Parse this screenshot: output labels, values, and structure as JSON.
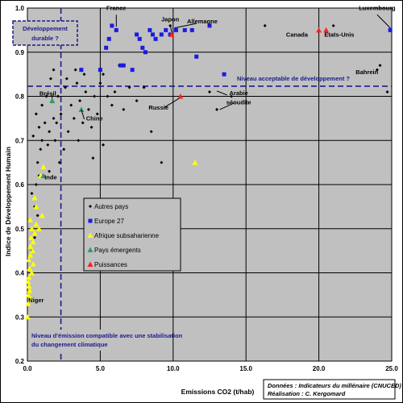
{
  "chart_data": {
    "type": "scatter",
    "xlabel": "Emissions CO2 (t/hab)",
    "ylabel": "Indice de Développement Humain",
    "xlim": [
      0,
      25
    ],
    "ylim": [
      0.2,
      1.0
    ],
    "x_ticks": [
      "0.0",
      "5.0",
      "10.0",
      "15.0",
      "20.0",
      "25.0"
    ],
    "y_ticks": [
      "0.2",
      "0.3",
      "0.4",
      "0.5",
      "0.6",
      "0.7",
      "0.8",
      "0.9",
      "1.0"
    ],
    "grid": true,
    "legend_position": "center-left",
    "series": [
      {
        "name": "Autres pays",
        "color": "#000000",
        "marker": "diamond",
        "points": [
          [
            0.2,
            0.52
          ],
          [
            0.3,
            0.58
          ],
          [
            0.5,
            0.55
          ],
          [
            0.6,
            0.6
          ],
          [
            0.7,
            0.65
          ],
          [
            0.8,
            0.62
          ],
          [
            0.9,
            0.68
          ],
          [
            1.0,
            0.7
          ],
          [
            0.4,
            0.71
          ],
          [
            0.6,
            0.76
          ],
          [
            0.8,
            0.73
          ],
          [
            1.0,
            0.78
          ],
          [
            1.2,
            0.74
          ],
          [
            1.3,
            0.8
          ],
          [
            1.4,
            0.69
          ],
          [
            1.5,
            0.72
          ],
          [
            1.6,
            0.84
          ],
          [
            1.7,
            0.79
          ],
          [
            1.8,
            0.75
          ],
          [
            1.9,
            0.7
          ],
          [
            2.0,
            0.74
          ],
          [
            2.1,
            0.8
          ],
          [
            2.2,
            0.65
          ],
          [
            2.3,
            0.76
          ],
          [
            2.5,
            0.68
          ],
          [
            2.6,
            0.82
          ],
          [
            2.8,
            0.72
          ],
          [
            3.0,
            0.78
          ],
          [
            3.2,
            0.75
          ],
          [
            3.4,
            0.83
          ],
          [
            3.5,
            0.7
          ],
          [
            3.6,
            0.79
          ],
          [
            3.8,
            0.74
          ],
          [
            4.0,
            0.81
          ],
          [
            4.2,
            0.77
          ],
          [
            4.4,
            0.73
          ],
          [
            4.6,
            0.8
          ],
          [
            4.8,
            0.76
          ],
          [
            5.0,
            0.83
          ],
          [
            5.2,
            0.85
          ],
          [
            5.5,
            0.8
          ],
          [
            5.8,
            0.78
          ],
          [
            6.0,
            0.81
          ],
          [
            6.3,
            0.87
          ],
          [
            6.6,
            0.77
          ],
          [
            7.0,
            0.82
          ],
          [
            7.5,
            0.79
          ],
          [
            8.0,
            0.82
          ],
          [
            8.5,
            0.72
          ],
          [
            9.2,
            0.65
          ],
          [
            9.8,
            0.96
          ],
          [
            12.5,
            0.81
          ],
          [
            13.0,
            0.77
          ],
          [
            14.0,
            0.8
          ],
          [
            16.3,
            0.96
          ],
          [
            21.0,
            0.96
          ],
          [
            24.0,
            0.86
          ],
          [
            24.2,
            0.87
          ],
          [
            24.7,
            0.81
          ],
          [
            0.5,
            0.48
          ],
          [
            0.7,
            0.53
          ],
          [
            1.1,
            0.62
          ],
          [
            1.5,
            0.63
          ],
          [
            2.7,
            0.84
          ],
          [
            3.3,
            0.86
          ],
          [
            5.2,
            0.69
          ],
          [
            4.5,
            0.66
          ],
          [
            0.3,
            0.45
          ],
          [
            1.8,
            0.86
          ],
          [
            3.9,
            0.85
          ]
        ]
      },
      {
        "name": "Europe 27",
        "color": "#1a1ae6",
        "marker": "square",
        "points": [
          [
            3.7,
            0.86
          ],
          [
            5.4,
            0.91
          ],
          [
            5.6,
            0.93
          ],
          [
            5.8,
            0.96
          ],
          [
            6.1,
            0.95
          ],
          [
            6.6,
            0.87
          ],
          [
            7.5,
            0.94
          ],
          [
            7.7,
            0.93
          ],
          [
            7.9,
            0.91
          ],
          [
            8.1,
            0.9
          ],
          [
            8.4,
            0.95
          ],
          [
            8.8,
            0.93
          ],
          [
            8.6,
            0.94
          ],
          [
            9.2,
            0.94
          ],
          [
            9.5,
            0.95
          ],
          [
            9.8,
            0.94
          ],
          [
            10.2,
            0.95
          ],
          [
            10.8,
            0.95
          ],
          [
            11.3,
            0.95
          ],
          [
            11.6,
            0.89
          ],
          [
            12.5,
            0.96
          ],
          [
            13.5,
            0.85
          ],
          [
            24.9,
            0.95
          ],
          [
            5.0,
            0.86
          ],
          [
            6.4,
            0.87
          ],
          [
            7.2,
            0.86
          ]
        ]
      },
      {
        "name": "Afrique subsaharienne",
        "color": "#ffff00",
        "marker": "triangle",
        "points": [
          [
            0.02,
            0.3
          ],
          [
            0.05,
            0.33
          ],
          [
            0.07,
            0.35
          ],
          [
            0.1,
            0.37
          ],
          [
            0.1,
            0.39
          ],
          [
            0.15,
            0.41
          ],
          [
            0.2,
            0.44
          ],
          [
            0.2,
            0.46
          ],
          [
            0.25,
            0.48
          ],
          [
            0.3,
            0.5
          ],
          [
            0.1,
            0.43
          ],
          [
            0.05,
            0.38
          ],
          [
            0.35,
            0.45
          ],
          [
            0.4,
            0.47
          ],
          [
            0.5,
            0.49
          ],
          [
            0.6,
            0.51
          ],
          [
            0.8,
            0.5
          ],
          [
            1.0,
            0.53
          ],
          [
            0.4,
            0.42
          ],
          [
            0.3,
            0.4
          ],
          [
            0.2,
            0.52
          ],
          [
            0.6,
            0.55
          ],
          [
            0.9,
            0.62
          ],
          [
            1.1,
            0.64
          ],
          [
            0.5,
            0.57
          ],
          [
            11.5,
            0.65
          ],
          [
            0.15,
            0.36
          ],
          [
            0.25,
            0.34
          ]
        ]
      },
      {
        "name": "Pays émergents",
        "color": "#2e9a6b",
        "marker": "triangle",
        "points": [
          [
            1.7,
            0.79
          ],
          [
            3.7,
            0.77
          ],
          [
            1.1,
            0.62
          ]
        ]
      },
      {
        "name": "Puissances",
        "color": "#ff2020",
        "marker": "triangle",
        "points": [
          [
            9.9,
            0.94
          ],
          [
            10.5,
            0.8
          ],
          [
            20.0,
            0.95
          ],
          [
            20.5,
            0.95
          ]
        ]
      }
    ],
    "reference_lines": [
      {
        "orientation": "horizontal",
        "value": 0.823,
        "label": "Niveau acceptable de développement ?"
      },
      {
        "orientation": "vertical",
        "value": 2.3,
        "label": "Niveau d'émission compatible avec une stabilisation du changement climatique"
      }
    ],
    "annotations": [
      {
        "text": "France",
        "x": 6.1,
        "y": 0.995
      },
      {
        "text": "Japon",
        "x": 9.8,
        "y": 0.97
      },
      {
        "text": "Allemagne",
        "x": 12.0,
        "y": 0.965
      },
      {
        "text": "Luxembourg",
        "x": 24.0,
        "y": 0.995
      },
      {
        "text": "Canada",
        "x": 18.5,
        "y": 0.935
      },
      {
        "text": "Etats-Unis",
        "x": 21.4,
        "y": 0.935
      },
      {
        "text": "Bahrein",
        "x": 23.3,
        "y": 0.85
      },
      {
        "text": "Brésil",
        "x": 1.4,
        "y": 0.802
      },
      {
        "text": "Chine",
        "x": 4.6,
        "y": 0.745
      },
      {
        "text": "Inde",
        "x": 1.6,
        "y": 0.612
      },
      {
        "text": "Russie",
        "x": 9.0,
        "y": 0.77
      },
      {
        "text": "Arabie",
        "x": 14.5,
        "y": 0.803
      },
      {
        "text": "séoudite",
        "x": 14.5,
        "y": 0.782
      },
      {
        "text": "Niger",
        "x": 0.6,
        "y": 0.333
      }
    ],
    "callout_top_left": [
      "Développement",
      "durable ?"
    ],
    "source": [
      "Données : Indicateurs du millénaire (CNUCED)",
      "Réalisation : C. Kergomard"
    ]
  }
}
